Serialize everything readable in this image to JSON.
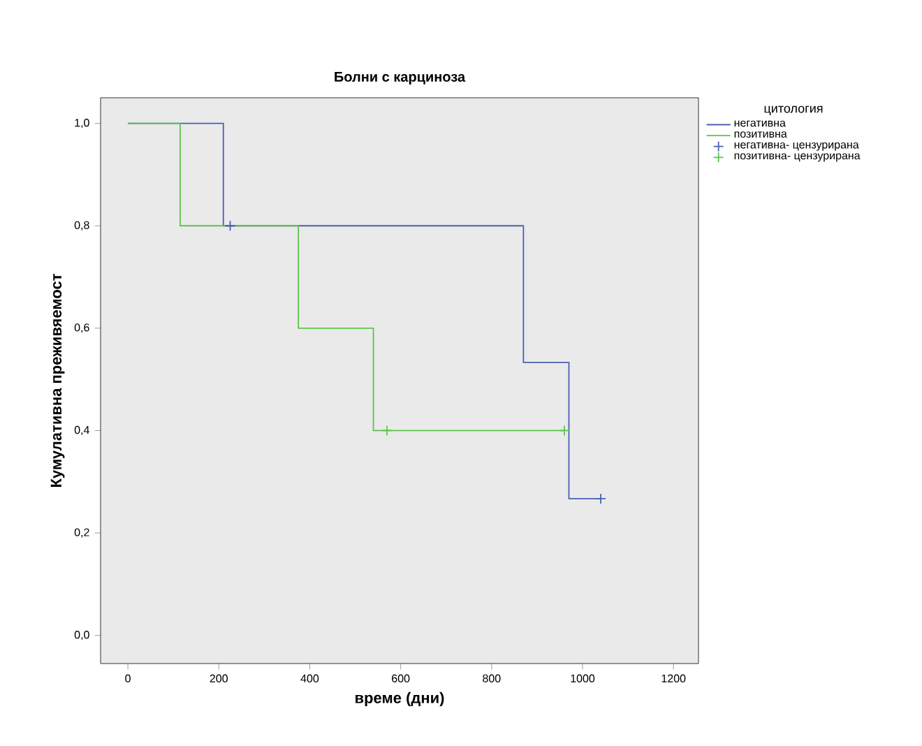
{
  "chart_data": {
    "type": "step",
    "title": "Болни с карциноза",
    "xlabel": "време (дни)",
    "ylabel": "Кумулативна преживяемост",
    "legend_title": "цитология",
    "legend": "right",
    "grid": false,
    "xlim": [
      -60,
      1255
    ],
    "ylim": [
      -0.055,
      1.05
    ],
    "xticks": [
      0,
      200,
      400,
      600,
      800,
      1000,
      1200
    ],
    "yticks": [
      {
        "value": 0,
        "label": "0,0"
      },
      {
        "value": 0.2,
        "label": "0,2"
      },
      {
        "value": 0.4,
        "label": "0,4"
      },
      {
        "value": 0.6,
        "label": "0,6"
      },
      {
        "value": 0.8,
        "label": "0,8"
      },
      {
        "value": 1,
        "label": "1,0"
      }
    ],
    "series": [
      {
        "name": "негативна",
        "color": "#4a5fb4",
        "x": [
          0,
          210,
          870,
          970,
          1040
        ],
        "values": [
          1,
          0.8,
          0.533,
          0.267,
          0.267
        ]
      },
      {
        "name": "позитивна",
        "color": "#5cc44a",
        "x": [
          0,
          115,
          375,
          540,
          960
        ],
        "values": [
          1,
          0.8,
          0.6,
          0.4,
          0.4
        ]
      },
      {
        "name": "негативна- цензурирана",
        "type": "scatter",
        "marker": "cross",
        "color": "#4a5fb4",
        "x": [
          225,
          1040
        ],
        "values": [
          0.8,
          0.267
        ]
      },
      {
        "name": "позитивна- цензурирана",
        "type": "scatter",
        "marker": "cross",
        "color": "#5cc44a",
        "x": [
          570,
          960
        ],
        "values": [
          0.4,
          0.4
        ]
      }
    ]
  }
}
